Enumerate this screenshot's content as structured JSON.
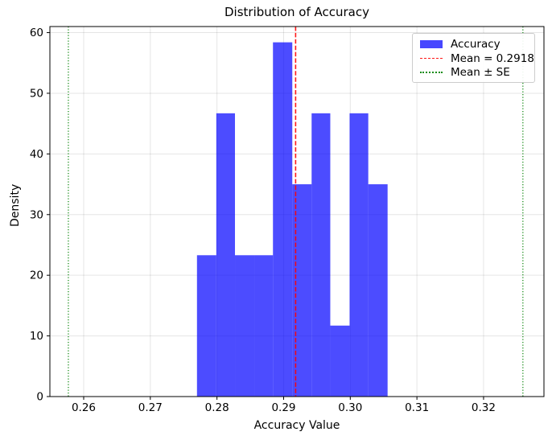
{
  "figure": {
    "background": "#ffffff"
  },
  "chart_data": {
    "type": "bar",
    "subtype": "histogram-density",
    "title": "Distribution of Accuracy",
    "xlabel": "Accuracy Value",
    "ylabel": "Density",
    "xlim": [
      0.25493,
      0.32906
    ],
    "ylim": [
      0,
      61
    ],
    "grid": true,
    "xtick_values": [
      0.26,
      0.27,
      0.28,
      0.29,
      0.3,
      0.31,
      0.32
    ],
    "xtick_labels": [
      "0.26",
      "0.27",
      "0.28",
      "0.29",
      "0.30",
      "0.31",
      "0.32"
    ],
    "ytick_values": [
      0,
      10,
      20,
      30,
      40,
      50,
      60
    ],
    "ytick_labels": [
      "0",
      "10",
      "20",
      "30",
      "40",
      "50",
      "60"
    ],
    "bars": {
      "label": "Accuracy",
      "color": "#0000ff",
      "opacity": 0.7,
      "bin_edges": [
        0.277,
        0.2799,
        0.2827,
        0.2856,
        0.2884,
        0.2913,
        0.2942,
        0.297,
        0.2999,
        0.3027,
        0.3056
      ],
      "densities": [
        23.3,
        46.7,
        23.3,
        23.3,
        58.4,
        35.0,
        46.7,
        11.7,
        46.7,
        35.0
      ],
      "counts": [
        2,
        4,
        2,
        2,
        5,
        3,
        4,
        1,
        4,
        3
      ],
      "n_samples": 30
    },
    "mean_line": {
      "value": 0.2918,
      "label": "Mean = 0.2918",
      "color": "#ff0000",
      "style": "dashed"
    },
    "se_lines": {
      "values": [
        0.2577,
        0.3259
      ],
      "label": "Mean ± SE",
      "color": "#008000",
      "style": "dotted"
    },
    "legend": {
      "position": "upper right",
      "items": [
        {
          "label": "Accuracy",
          "swatch": "patch",
          "color": "#0000ff"
        },
        {
          "label": "Mean = 0.2918",
          "swatch": "dashed-line",
          "color": "#ff0000"
        },
        {
          "label": "Mean ± SE",
          "swatch": "dotted-line",
          "color": "#008000"
        }
      ]
    }
  }
}
